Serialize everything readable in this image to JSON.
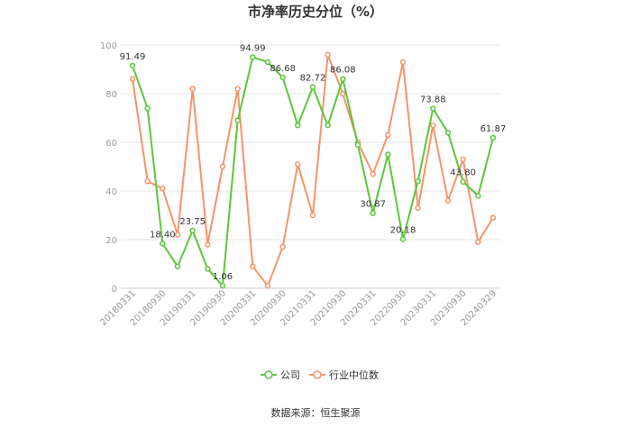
{
  "chart_data": {
    "type": "line",
    "title": "市净率历史分位（%）",
    "source": "数据来源：恒生聚源",
    "ylim": [
      0,
      100
    ],
    "yticks": [
      0,
      20,
      40,
      60,
      80,
      100
    ],
    "grid": true,
    "legend_position": "bottom",
    "x": [
      "20180331",
      "20180630",
      "20180930",
      "20181231",
      "20190331",
      "20190630",
      "20190930",
      "20191231",
      "20200331",
      "20200630",
      "20200930",
      "20201231",
      "20210331",
      "20210630",
      "20210930",
      "20211231",
      "20220331",
      "20220630",
      "20220930",
      "20221231",
      "20230331",
      "20230630",
      "20230930",
      "20231231",
      "20240329"
    ],
    "xtick_labels": [
      "20180331",
      "20180930",
      "20190331",
      "20190930",
      "20200331",
      "20200930",
      "20210331",
      "20210930",
      "20220331",
      "20220930",
      "20230331",
      "20230930",
      "20240329"
    ],
    "series": [
      {
        "name": "公司",
        "color": "#5cc63a",
        "values": [
          91.49,
          74,
          18.4,
          9,
          23.75,
          8,
          1.06,
          69,
          94.99,
          93,
          86.68,
          67,
          82.72,
          67,
          86.08,
          59,
          30.87,
          55,
          20.18,
          44,
          73.88,
          64,
          43.8,
          38,
          61.87
        ],
        "labels": {
          "0": "91.49",
          "2": "18.40",
          "4": "23.75",
          "6": "1.06",
          "8": "94.99",
          "10": "86.68",
          "12": "82.72",
          "14": "86.08",
          "16": "30.87",
          "18": "20.18",
          "20": "73.88",
          "22": "43.80",
          "24": "61.87"
        }
      },
      {
        "name": "行业中位数",
        "color": "#f5946a",
        "values": [
          86,
          44,
          41,
          22,
          82,
          18,
          50,
          82,
          9,
          1,
          17,
          51,
          30,
          96,
          80,
          60,
          47,
          63,
          93,
          33,
          67,
          36,
          53,
          19,
          29
        ]
      }
    ]
  }
}
